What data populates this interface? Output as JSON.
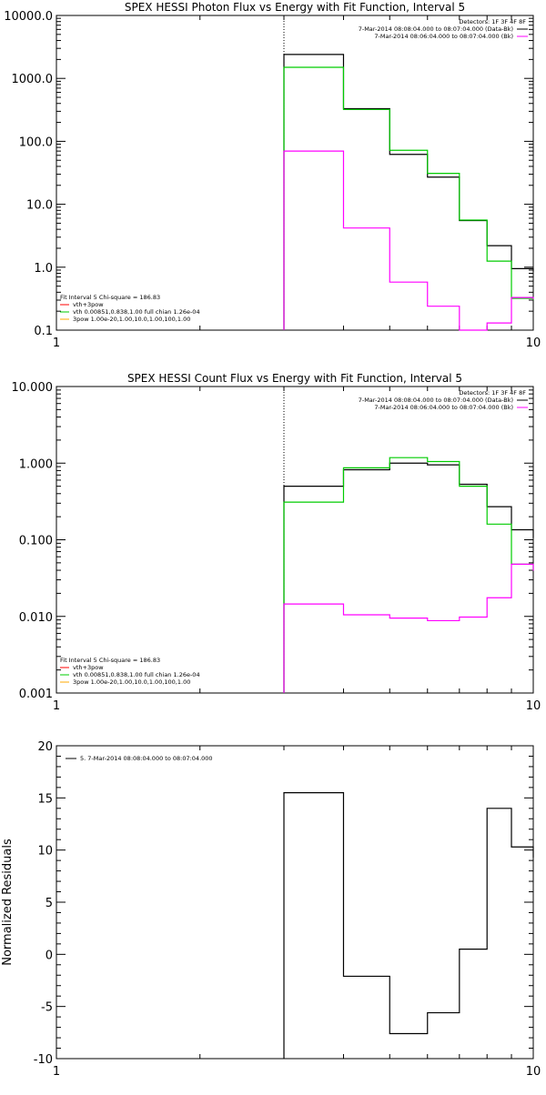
{
  "chart_data": [
    {
      "type": "line",
      "step": true,
      "title": "SPEX HESSI Photon Flux vs Energy with Fit Function, Interval 5",
      "xscale": "log",
      "yscale": "log",
      "xlim": [
        1,
        10
      ],
      "ylim": [
        0.1,
        10000
      ],
      "xticklabels": [
        "1",
        "10"
      ],
      "yticks": [
        0.1,
        1,
        10,
        100,
        1000,
        10000
      ],
      "yticklabels": [
        "0.1",
        "1.0",
        "10.0",
        "100.0",
        "1000.0",
        "10000.0"
      ],
      "vline_x": 3.0,
      "top_legend": {
        "heading": "Detectors: 1F 3F 4F 8F",
        "entries": [
          {
            "text": "7-Mar-2014 08:08:04.000 to 08:07:04.000 (Data-Bk)",
            "color": "#000000"
          },
          {
            "text": "7-Mar-2014 08:06:04.000 to 08:07:04.000 (Bk)",
            "color": "#ff00ff"
          }
        ]
      },
      "bottom_legend": {
        "heading": "Fit Interval 5   Chi-square = 186.83",
        "entries": [
          {
            "text": "vth+3pow",
            "color": "#ff0000"
          },
          {
            "text": "vth 0.00851,0.838,1.00   full chian 1.26e-04",
            "color": "#00cc00"
          },
          {
            "text": "3pow 1.00e-20,1.00,10.0,1.00,100,1.00",
            "color": "#ffaa00"
          }
        ]
      },
      "edges": [
        3.0,
        4.0,
        5.0,
        6.0,
        7.0,
        8.0,
        9.0,
        10.0
      ],
      "series": [
        {
          "color": "#000000",
          "values": [
            2400,
            330,
            62,
            27,
            5.5,
            2.2,
            0.95
          ]
        },
        {
          "color": "#00cc00",
          "values": [
            1500,
            320,
            72,
            31,
            5.6,
            1.25,
            0.32
          ]
        },
        {
          "color": "#ff00ff",
          "values": [
            70,
            4.2,
            0.58,
            0.24,
            0.09,
            0.13,
            0.33
          ]
        }
      ]
    },
    {
      "type": "line",
      "step": true,
      "title": "SPEX HESSI Count Flux vs Energy with Fit Function, Interval 5",
      "xscale": "log",
      "yscale": "log",
      "xlim": [
        1,
        10
      ],
      "ylim": [
        0.001,
        10
      ],
      "xticklabels": [
        "1",
        "10"
      ],
      "yticks": [
        0.001,
        0.01,
        0.1,
        1,
        10
      ],
      "yticklabels": [
        "0.001",
        "0.010",
        "0.100",
        "1.000",
        "10.000"
      ],
      "vline_x": 3.0,
      "top_legend": {
        "heading": "Detectors: 1F 3F 4F 8F",
        "entries": [
          {
            "text": "7-Mar-2014 08:08:04.000 to 08:07:04.000 (Data-Bk)",
            "color": "#000000"
          },
          {
            "text": "7-Mar-2014 08:06:04.000 to 08:07:04.000 (Bk)",
            "color": "#ff00ff"
          }
        ]
      },
      "bottom_legend": {
        "heading": "Fit Interval 5   Chi-square = 186.83",
        "entries": [
          {
            "text": "vth+3pow",
            "color": "#ff0000"
          },
          {
            "text": "vth 0.00851,0.838,1.00   full chian 1.26e-04",
            "color": "#00cc00"
          },
          {
            "text": "3pow 1.00e-20,1.00,10.0,1.00,100,1.00",
            "color": "#ffaa00"
          }
        ]
      },
      "edges": [
        3.0,
        4.0,
        5.0,
        6.0,
        7.0,
        8.0,
        9.0,
        10.0
      ],
      "series": [
        {
          "color": "#000000",
          "values": [
            0.5,
            0.82,
            1.0,
            0.95,
            0.53,
            0.27,
            0.135
          ]
        },
        {
          "color": "#00cc00",
          "values": [
            0.31,
            0.87,
            1.18,
            1.05,
            0.5,
            0.16,
            0.048
          ]
        },
        {
          "color": "#ff00ff",
          "values": [
            0.0145,
            0.0105,
            0.0095,
            0.0088,
            0.0098,
            0.0175,
            0.048
          ]
        }
      ]
    },
    {
      "type": "line",
      "step": true,
      "title": "",
      "ylabel": "Normalized Residuals",
      "xscale": "log",
      "yscale": "linear",
      "xlim": [
        1,
        10
      ],
      "ylim": [
        -10,
        20
      ],
      "xticklabels": [
        "1",
        "10"
      ],
      "yticks": [
        -10,
        -5,
        0,
        5,
        10,
        15,
        20
      ],
      "yticklabels": [
        "-10",
        "-5",
        "0",
        "5",
        "10",
        "15",
        "20"
      ],
      "legend": [
        {
          "text": "5. 7-Mar-2014 08:08:04.000 to 08:07:04.000",
          "color": "#000000"
        }
      ],
      "edges": [
        3.0,
        4.0,
        5.0,
        6.0,
        7.0,
        8.0,
        9.0,
        10.0
      ],
      "series": [
        {
          "color": "#000000",
          "values": [
            15.5,
            -2.1,
            -7.6,
            -5.6,
            0.5,
            14.0,
            10.3
          ]
        }
      ]
    }
  ]
}
